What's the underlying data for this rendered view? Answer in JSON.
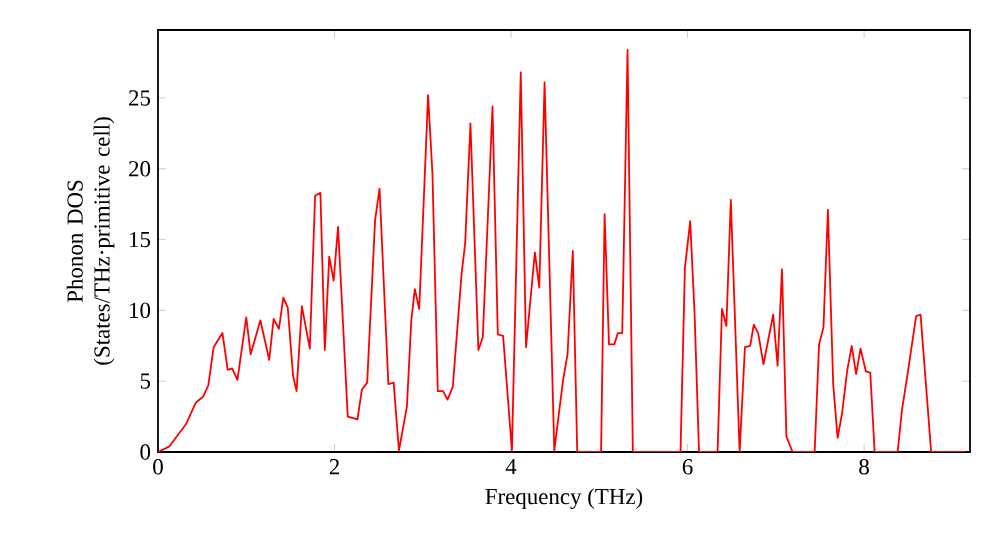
{
  "chart_data": {
    "type": "line",
    "xlabel": "Frequency (THz)",
    "ylabel": "Phonon DOS (States/THz·primitive cell)",
    "xlim": [
      0,
      9.2
    ],
    "ylim": [
      0,
      29.8
    ],
    "xticks": [
      0,
      2,
      4,
      6,
      8
    ],
    "yticks": [
      0,
      5,
      10,
      15,
      20,
      25
    ],
    "grid": false,
    "series": [
      {
        "color": "#ff0000",
        "x": [
          0,
          0.13,
          0.32,
          0.43,
          0.51,
          0.57,
          0.63,
          0.73,
          0.79,
          0.84,
          0.9,
          1.0,
          1.05,
          1.16,
          1.26,
          1.31,
          1.37,
          1.42,
          1.47,
          1.53,
          1.57,
          1.63,
          1.72,
          1.78,
          1.84,
          1.89,
          1.94,
          1.99,
          2.04,
          2.15,
          2.26,
          2.31,
          2.37,
          2.46,
          2.51,
          2.61,
          2.67,
          2.73,
          2.82,
          2.87,
          2.91,
          2.96,
          3.06,
          3.11,
          3.17,
          3.23,
          3.28,
          3.34,
          3.44,
          3.48,
          3.54,
          3.63,
          3.68,
          3.79,
          3.85,
          3.91,
          4.01,
          4.11,
          4.17,
          4.27,
          4.32,
          4.38,
          4.49,
          4.59,
          4.64,
          4.7,
          4.75,
          5.02,
          5.06,
          5.11,
          5.17,
          5.21,
          5.26,
          5.32,
          5.38,
          5.92,
          5.97,
          6.03,
          6.08,
          6.13,
          6.34,
          6.39,
          6.44,
          6.49,
          6.59,
          6.65,
          6.71,
          6.75,
          6.8,
          6.86,
          6.97,
          7.02,
          7.07,
          7.12,
          7.19,
          7.44,
          7.49,
          7.54,
          7.59,
          7.65,
          7.7,
          7.75,
          7.81,
          7.86,
          7.91,
          7.96,
          8.02,
          8.07,
          8.12,
          8.38,
          8.43,
          8.49,
          8.59,
          8.64,
          8.76,
          9.15
        ],
        "values": [
          0,
          0.4,
          2.0,
          3.5,
          3.9,
          4.7,
          7.4,
          8.4,
          5.8,
          5.9,
          5.1,
          9.5,
          6.9,
          9.3,
          6.5,
          9.4,
          8.7,
          10.9,
          10.2,
          5.4,
          4.3,
          10.3,
          7.3,
          18.1,
          18.3,
          7.2,
          13.8,
          12.1,
          15.9,
          2.5,
          2.3,
          4.4,
          4.9,
          16.4,
          18.6,
          4.8,
          4.9,
          0.1,
          3.2,
          9.3,
          11.5,
          10.1,
          25.2,
          19.6,
          4.3,
          4.3,
          3.7,
          4.6,
          12.6,
          14.7,
          23.2,
          7.2,
          8.1,
          24.4,
          8.3,
          8.2,
          0.1,
          26.8,
          7.4,
          14.1,
          11.6,
          26.1,
          0.1,
          5.1,
          6.9,
          14.2,
          0,
          0,
          16.8,
          7.6,
          7.6,
          8.4,
          8.4,
          28.4,
          0,
          0,
          13.0,
          16.3,
          9.7,
          0,
          0,
          10.1,
          8.9,
          17.8,
          0,
          7.4,
          7.5,
          9.0,
          8.4,
          6.2,
          9.7,
          6.1,
          12.9,
          1.1,
          0,
          0,
          7.6,
          8.8,
          17.1,
          4.8,
          1.0,
          2.7,
          5.8,
          7.5,
          5.5,
          7.3,
          5.7,
          5.6,
          0,
          0,
          3.0,
          5.4,
          9.6,
          9.7,
          0,
          0
        ]
      }
    ]
  }
}
